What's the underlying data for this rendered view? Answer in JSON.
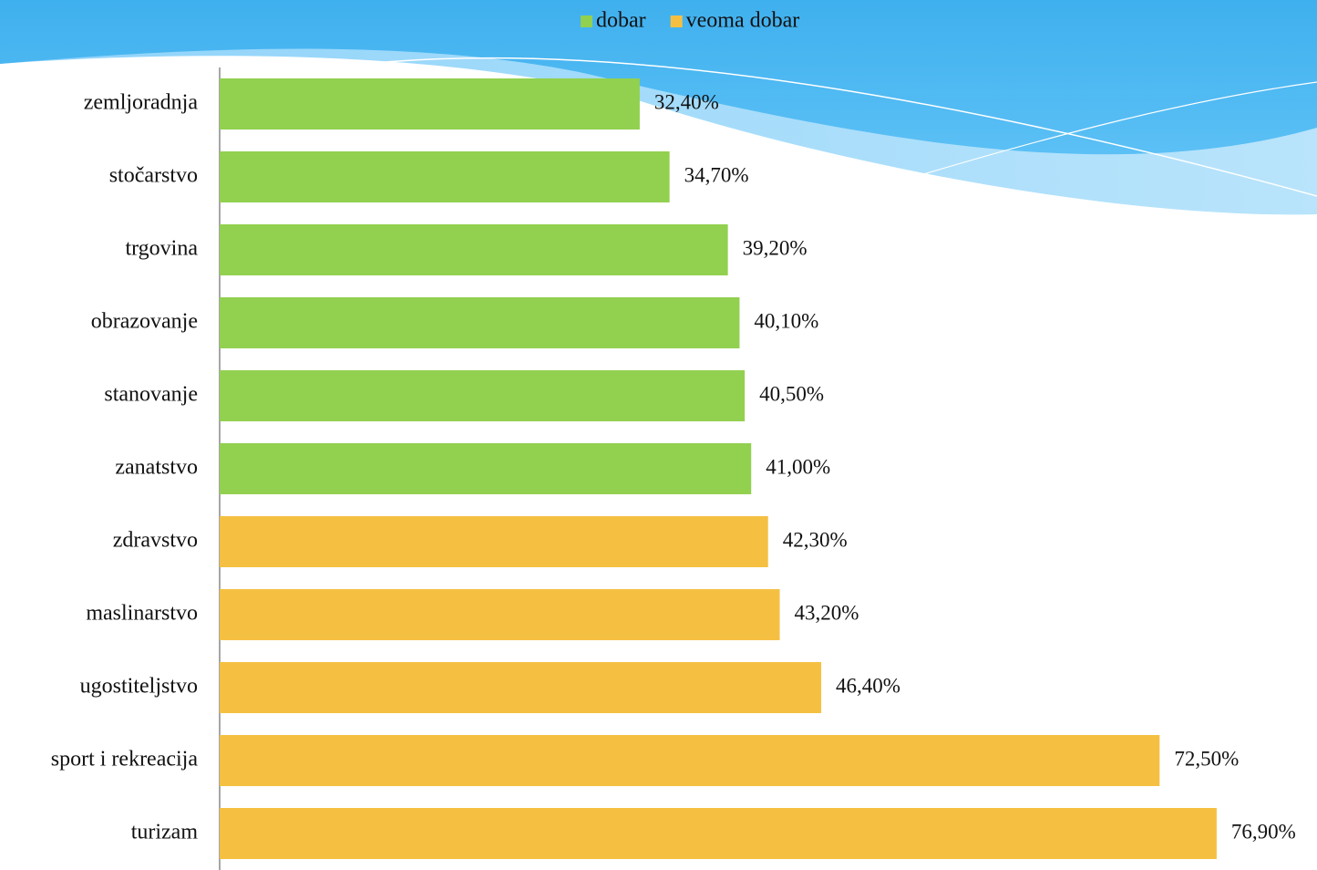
{
  "chart_data": {
    "type": "bar",
    "orientation": "horizontal",
    "categories": [
      "zemljoradnja",
      "stočarstvo",
      "trgovina",
      "obrazovanje",
      "stanovanje",
      "zanatstvo",
      "zdravstvo",
      "maslinarstvo",
      "ugostiteljstvo",
      "sport  i rekreacija",
      "turizam"
    ],
    "series": [
      {
        "name": "dobar",
        "color": "#92d050",
        "values": [
          32.4,
          34.7,
          39.2,
          40.1,
          40.5,
          41.0,
          null,
          null,
          null,
          null,
          null
        ],
        "value_labels": [
          "32,40%",
          "34,70%",
          "39,20%",
          "40,10%",
          "40,50%",
          "41,00%",
          null,
          null,
          null,
          null,
          null
        ]
      },
      {
        "name": "veoma dobar",
        "color": "#f5c042",
        "values": [
          null,
          null,
          null,
          null,
          null,
          null,
          42.3,
          43.2,
          46.4,
          72.5,
          76.9
        ],
        "value_labels": [
          null,
          null,
          null,
          null,
          null,
          null,
          "42,30%",
          "43,20%",
          "46,40%",
          "72,50%",
          "76,90%"
        ]
      }
    ],
    "xlim": [
      0,
      80
    ],
    "legend": "top"
  }
}
